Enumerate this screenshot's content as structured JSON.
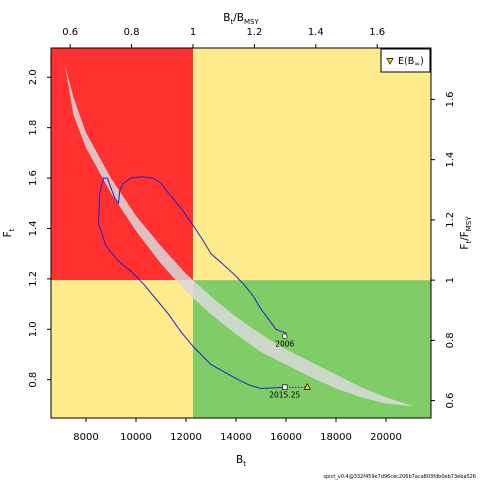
{
  "chart_data": {
    "type": "line",
    "title": "",
    "xlabel": "B",
    "xlabel_sub": "t",
    "ylabel": "F",
    "ylabel_sub": "t",
    "top_label": "B",
    "top_label_sub": "t",
    "top_label_rest": "/B",
    "top_label_rest_sub": "MSY",
    "right_label": "F",
    "right_label_sub": "t",
    "right_label_rest": "/F",
    "right_label_rest_sub": "MSY",
    "xlim": [
      6600,
      21800
    ],
    "ylim": [
      0.648,
      2.116
    ],
    "x_ticks": [
      8000,
      10000,
      12000,
      14000,
      16000,
      18000,
      20000
    ],
    "y_ticks": [
      0.8,
      1.0,
      1.2,
      1.4,
      1.6,
      1.8,
      2.0
    ],
    "x_tick_labels": [
      "8000",
      "10000",
      "12000",
      "14000",
      "16000",
      "18000",
      "20000"
    ],
    "y_tick_labels": [
      "0.8",
      "1.0",
      "1.2",
      "1.4",
      "1.6",
      "1.8",
      "2.0"
    ],
    "top_ticks": [
      0.6,
      0.8,
      1,
      1.2,
      1.4,
      1.6
    ],
    "top_tick_labels": [
      "0.6",
      "0.8",
      "1",
      "1.2",
      "1.4",
      "1.6"
    ],
    "right_ticks": [
      0.6,
      0.8,
      1,
      1.2,
      1.4,
      1.6
    ],
    "right_tick_labels": [
      "0.6",
      "0.8",
      "1",
      "1.2",
      "1.4",
      "1.6"
    ],
    "Bmsy": 12280,
    "Fmsy": 1.195,
    "quadrant_colors": {
      "overfishing_overfished": "#ff3030",
      "caution": "#ffea8c",
      "good": "#80cc66"
    },
    "ellipse_band": {
      "color": "#d9d9d9",
      "upper": [
        [
          7150,
          2.05
        ],
        [
          7500,
          1.92
        ],
        [
          8000,
          1.78
        ],
        [
          9000,
          1.6
        ],
        [
          10000,
          1.45
        ],
        [
          11000,
          1.33
        ],
        [
          12000,
          1.22
        ],
        [
          13000,
          1.13
        ],
        [
          14000,
          1.05
        ],
        [
          15000,
          0.98
        ],
        [
          16000,
          0.92
        ],
        [
          17000,
          0.87
        ],
        [
          18000,
          0.82
        ],
        [
          19000,
          0.77
        ],
        [
          20000,
          0.73
        ],
        [
          21100,
          0.695
        ]
      ],
      "lower": [
        [
          21100,
          0.695
        ],
        [
          20000,
          0.705
        ],
        [
          19000,
          0.73
        ],
        [
          18000,
          0.765
        ],
        [
          17000,
          0.81
        ],
        [
          16000,
          0.86
        ],
        [
          15000,
          0.91
        ],
        [
          14000,
          0.98
        ],
        [
          13000,
          1.06
        ],
        [
          12000,
          1.15
        ],
        [
          11000,
          1.26
        ],
        [
          10000,
          1.39
        ],
        [
          9000,
          1.54
        ],
        [
          8000,
          1.72
        ],
        [
          7500,
          1.85
        ],
        [
          7150,
          2.05
        ]
      ]
    },
    "series": [
      {
        "type": "trajectory",
        "color": "#2222cc",
        "points": [
          [
            16000,
            0.77
          ],
          [
            15000,
            0.765
          ],
          [
            14500,
            0.78
          ],
          [
            14000,
            0.805
          ],
          [
            13000,
            0.86
          ],
          [
            12300,
            0.93
          ],
          [
            11800,
            0.99
          ],
          [
            11300,
            1.06
          ],
          [
            10800,
            1.12
          ],
          [
            10300,
            1.18
          ],
          [
            9800,
            1.23
          ],
          [
            9300,
            1.27
          ],
          [
            8800,
            1.33
          ],
          [
            8500,
            1.42
          ],
          [
            8550,
            1.54
          ],
          [
            8700,
            1.6
          ],
          [
            8850,
            1.6
          ],
          [
            9000,
            1.56
          ],
          [
            9150,
            1.52
          ],
          [
            9300,
            1.5
          ],
          [
            9350,
            1.55
          ],
          [
            9500,
            1.58
          ],
          [
            9800,
            1.6
          ],
          [
            10200,
            1.605
          ],
          [
            10700,
            1.6
          ],
          [
            11000,
            1.58
          ],
          [
            11300,
            1.54
          ],
          [
            11800,
            1.48
          ],
          [
            12300,
            1.41
          ],
          [
            12700,
            1.35
          ],
          [
            13000,
            1.3
          ],
          [
            13400,
            1.265
          ],
          [
            13900,
            1.22
          ],
          [
            14300,
            1.18
          ],
          [
            14700,
            1.13
          ],
          [
            15000,
            1.08
          ],
          [
            15300,
            1.04
          ],
          [
            15600,
            1.0
          ],
          [
            16000,
            0.985
          ],
          [
            16000,
            0.97
          ]
        ]
      },
      {
        "type": "projection",
        "color": "#2222cc",
        "points": [
          [
            16000,
            0.77
          ],
          [
            16900,
            0.77
          ]
        ]
      }
    ],
    "points": [
      {
        "label": "2006",
        "x": 15950,
        "y": 0.972,
        "marker": "circle"
      },
      {
        "label": "2015.25",
        "x": 15950,
        "y": 0.77,
        "marker": "square"
      },
      {
        "label": "",
        "x": 16850,
        "y": 0.772,
        "marker": "triangle"
      }
    ],
    "legend": {
      "position": "top-right",
      "label_main": "E(B",
      "label_sub": "∞",
      "label_end": ")",
      "marker": "triangle",
      "marker_color": "#ffd700"
    },
    "footer_text": "spict_v0.4@332f459e7d96cec206b7aca803fdb0eb73eba526"
  }
}
